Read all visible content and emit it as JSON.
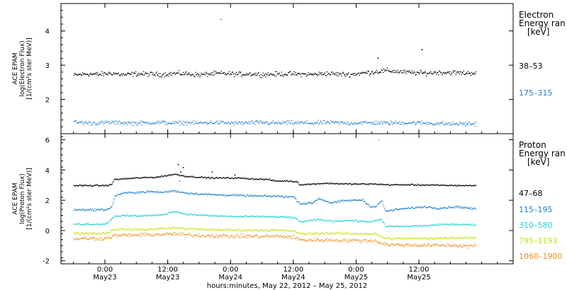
{
  "chart_data": [
    {
      "type": "scatter",
      "title": "",
      "ylabel_lines": [
        "ACE EPAM",
        "log(Electron Flux)",
        "[1/(cm²s ster MeV)]"
      ],
      "ylim": [
        1.0,
        4.8
      ],
      "yticks": [
        2,
        3,
        4
      ],
      "legend_title_lines": [
        "Electron",
        "Energy ran",
        "[keV]"
      ],
      "legend_placement": "right",
      "series": [
        {
          "name": "38–53",
          "color": "#000000",
          "baseline": 2.75,
          "noise": 0.1,
          "points": [
            [
              0.0,
              2.72
            ],
            [
              0.1,
              2.76
            ],
            [
              0.2,
              2.74
            ],
            [
              0.3,
              2.78
            ],
            [
              0.4,
              2.73
            ],
            [
              0.5,
              2.76
            ],
            [
              0.6,
              2.75
            ],
            [
              0.7,
              2.74
            ],
            [
              0.8,
              2.77
            ],
            [
              0.9,
              2.76
            ],
            [
              1.0,
              2.73
            ],
            [
              1.1,
              2.76
            ],
            [
              1.2,
              2.77
            ],
            [
              1.3,
              2.75
            ],
            [
              1.4,
              2.76
            ],
            [
              1.5,
              2.74
            ],
            [
              1.6,
              2.75
            ],
            [
              1.7,
              2.76
            ],
            [
              1.8,
              2.75
            ],
            [
              1.9,
              2.74
            ],
            [
              2.0,
              2.77
            ],
            [
              2.1,
              2.75
            ],
            [
              2.2,
              2.74
            ],
            [
              2.3,
              2.78
            ],
            [
              2.4,
              2.82
            ],
            [
              2.5,
              2.85
            ],
            [
              2.6,
              2.82
            ],
            [
              2.7,
              2.79
            ],
            [
              2.8,
              2.78
            ],
            [
              2.9,
              2.8
            ],
            [
              3.0,
              2.8
            ],
            [
              3.1,
              2.78
            ],
            [
              3.2,
              2.79
            ]
          ]
        },
        {
          "name": "175–315",
          "color": "#1f7fd0",
          "baseline": 1.33,
          "noise": 0.09,
          "points": [
            [
              0.0,
              1.35
            ],
            [
              0.1,
              1.33
            ],
            [
              0.2,
              1.32
            ],
            [
              0.3,
              1.34
            ],
            [
              0.4,
              1.33
            ],
            [
              0.5,
              1.32
            ],
            [
              0.6,
              1.33
            ],
            [
              0.7,
              1.34
            ],
            [
              0.8,
              1.32
            ],
            [
              0.9,
              1.33
            ],
            [
              1.0,
              1.32
            ],
            [
              1.1,
              1.34
            ],
            [
              1.2,
              1.33
            ],
            [
              1.3,
              1.32
            ],
            [
              1.4,
              1.33
            ],
            [
              1.5,
              1.34
            ],
            [
              1.6,
              1.32
            ],
            [
              1.7,
              1.33
            ],
            [
              1.8,
              1.33
            ],
            [
              1.9,
              1.32
            ],
            [
              2.0,
              1.34
            ],
            [
              2.1,
              1.33
            ],
            [
              2.2,
              1.32
            ],
            [
              2.3,
              1.33
            ],
            [
              2.4,
              1.33
            ],
            [
              2.5,
              1.32
            ],
            [
              2.6,
              1.33
            ],
            [
              2.7,
              1.33
            ],
            [
              2.8,
              1.32
            ],
            [
              2.9,
              1.31
            ],
            [
              3.0,
              1.3
            ],
            [
              3.1,
              1.3
            ],
            [
              3.2,
              1.3
            ]
          ]
        }
      ],
      "outliers": [
        {
          "x": 1.17,
          "y": 4.35,
          "color": "#1f7fd0"
        },
        {
          "x": 2.42,
          "y": 3.22,
          "color": "#000000"
        },
        {
          "x": 2.77,
          "y": 3.47,
          "color": "#000000"
        }
      ]
    },
    {
      "type": "scatter",
      "title": "",
      "ylabel_lines": [
        "ACE EPAM",
        "log(Proton Flux)",
        "[1/(cm²s ster MeV)]"
      ],
      "ylim": [
        -2.2,
        6.4
      ],
      "yticks": [
        -2,
        0,
        2,
        4,
        6
      ],
      "legend_title_lines": [
        "Proton",
        "Energy ran",
        "[keV]"
      ],
      "legend_placement": "right",
      "series": [
        {
          "name": "47–68",
          "color": "#000000",
          "noise": 0.07,
          "points": [
            [
              0.0,
              3.0
            ],
            [
              0.25,
              3.0
            ],
            [
              0.3,
              3.05
            ],
            [
              0.32,
              3.4
            ],
            [
              0.5,
              3.5
            ],
            [
              0.65,
              3.55
            ],
            [
              0.7,
              3.6
            ],
            [
              0.8,
              3.75
            ],
            [
              0.9,
              3.6
            ],
            [
              1.0,
              3.55
            ],
            [
              1.1,
              3.5
            ],
            [
              1.3,
              3.5
            ],
            [
              1.4,
              3.45
            ],
            [
              1.55,
              3.4
            ],
            [
              1.6,
              3.3
            ],
            [
              1.7,
              3.3
            ],
            [
              1.78,
              3.25
            ],
            [
              1.8,
              3.05
            ],
            [
              2.0,
              3.15
            ],
            [
              2.2,
              3.1
            ],
            [
              2.4,
              3.1
            ],
            [
              2.5,
              3.05
            ],
            [
              2.7,
              3.05
            ],
            [
              2.9,
              3.02
            ],
            [
              3.1,
              3.0
            ],
            [
              3.2,
              3.0
            ]
          ]
        },
        {
          "name": "115–195",
          "color": "#1f7fd0",
          "noise": 0.1,
          "points": [
            [
              0.0,
              1.4
            ],
            [
              0.25,
              1.4
            ],
            [
              0.3,
              1.55
            ],
            [
              0.33,
              2.35
            ],
            [
              0.4,
              2.5
            ],
            [
              0.5,
              2.55
            ],
            [
              0.6,
              2.6
            ],
            [
              0.7,
              2.55
            ],
            [
              0.8,
              2.65
            ],
            [
              0.9,
              2.5
            ],
            [
              1.0,
              2.45
            ],
            [
              1.1,
              2.4
            ],
            [
              1.3,
              2.35
            ],
            [
              1.5,
              2.3
            ],
            [
              1.6,
              2.3
            ],
            [
              1.75,
              2.25
            ],
            [
              1.8,
              1.8
            ],
            [
              1.9,
              1.85
            ],
            [
              1.95,
              2.15
            ],
            [
              2.05,
              1.85
            ],
            [
              2.15,
              2.0
            ],
            [
              2.3,
              2.05
            ],
            [
              2.35,
              1.65
            ],
            [
              2.4,
              1.6
            ],
            [
              2.45,
              2.0
            ],
            [
              2.48,
              1.3
            ],
            [
              2.6,
              1.45
            ],
            [
              2.8,
              1.6
            ],
            [
              2.9,
              1.5
            ],
            [
              3.05,
              1.6
            ],
            [
              3.2,
              1.45
            ]
          ]
        },
        {
          "name": "310–580",
          "color": "#26d0d0",
          "noise": 0.09,
          "points": [
            [
              0.0,
              0.45
            ],
            [
              0.25,
              0.45
            ],
            [
              0.33,
              1.0
            ],
            [
              0.5,
              1.0
            ],
            [
              0.7,
              1.05
            ],
            [
              0.8,
              1.3
            ],
            [
              0.9,
              1.1
            ],
            [
              1.1,
              1.0
            ],
            [
              1.3,
              0.95
            ],
            [
              1.5,
              0.95
            ],
            [
              1.75,
              0.9
            ],
            [
              1.8,
              0.6
            ],
            [
              1.95,
              0.75
            ],
            [
              2.05,
              0.65
            ],
            [
              2.2,
              0.7
            ],
            [
              2.35,
              0.6
            ],
            [
              2.45,
              0.75
            ],
            [
              2.48,
              0.3
            ],
            [
              2.6,
              0.3
            ],
            [
              2.8,
              0.35
            ],
            [
              3.0,
              0.45
            ],
            [
              3.2,
              0.4
            ]
          ]
        },
        {
          "name": "795–1193",
          "color": "#c8e010",
          "noise": 0.12,
          "points": [
            [
              0.0,
              -0.15
            ],
            [
              0.25,
              -0.15
            ],
            [
              0.33,
              0.1
            ],
            [
              0.6,
              0.1
            ],
            [
              0.8,
              0.2
            ],
            [
              1.0,
              0.1
            ],
            [
              1.3,
              0.05
            ],
            [
              1.6,
              0.05
            ],
            [
              1.75,
              0.0
            ],
            [
              1.8,
              -0.2
            ],
            [
              2.0,
              -0.15
            ],
            [
              2.4,
              -0.2
            ],
            [
              2.48,
              -0.5
            ],
            [
              2.8,
              -0.5
            ],
            [
              3.0,
              -0.45
            ],
            [
              3.2,
              -0.45
            ]
          ]
        },
        {
          "name": "1060–1900",
          "color": "#f08c1a",
          "noise": 0.18,
          "points": [
            [
              0.0,
              -0.5
            ],
            [
              0.25,
              -0.5
            ],
            [
              0.33,
              -0.3
            ],
            [
              0.6,
              -0.25
            ],
            [
              0.8,
              -0.2
            ],
            [
              1.0,
              -0.3
            ],
            [
              1.3,
              -0.35
            ],
            [
              1.6,
              -0.35
            ],
            [
              1.75,
              -0.4
            ],
            [
              1.8,
              -0.6
            ],
            [
              2.0,
              -0.6
            ],
            [
              2.4,
              -0.65
            ],
            [
              2.48,
              -0.9
            ],
            [
              2.8,
              -0.95
            ],
            [
              3.0,
              -0.95
            ],
            [
              3.2,
              -1.0
            ]
          ]
        }
      ],
      "outliers": [
        {
          "x": 0.83,
          "y": 4.4,
          "color": "#000000"
        },
        {
          "x": 0.85,
          "y": 3.9,
          "color": "#000000"
        },
        {
          "x": 0.87,
          "y": 4.2,
          "color": "#000000"
        },
        {
          "x": 0.84,
          "y": 3.3,
          "color": "#1f7fd0"
        },
        {
          "x": 1.1,
          "y": 3.9,
          "color": "#000000"
        },
        {
          "x": 1.28,
          "y": 3.7,
          "color": "#000000"
        },
        {
          "x": 2.43,
          "y": 6.0,
          "color": "#26d0d0"
        }
      ]
    }
  ],
  "x_axis": {
    "tick_labels": [
      {
        "x": 0.25,
        "time": "0:00",
        "date": "May23"
      },
      {
        "x": 0.75,
        "time": "12:00",
        "date": "May23"
      },
      {
        "x": 1.25,
        "time": "0:00",
        "date": "May24"
      },
      {
        "x": 1.75,
        "time": "12:00",
        "date": "May24"
      },
      {
        "x": 2.25,
        "time": "0:00",
        "date": "May25"
      },
      {
        "x": 2.75,
        "time": "12:00",
        "date": "May25"
      }
    ],
    "xlim": [
      -0.1,
      3.5
    ],
    "data_end": 3.2,
    "footer": "hours:minutes, May 22, 2012 – May 25, 2012"
  }
}
